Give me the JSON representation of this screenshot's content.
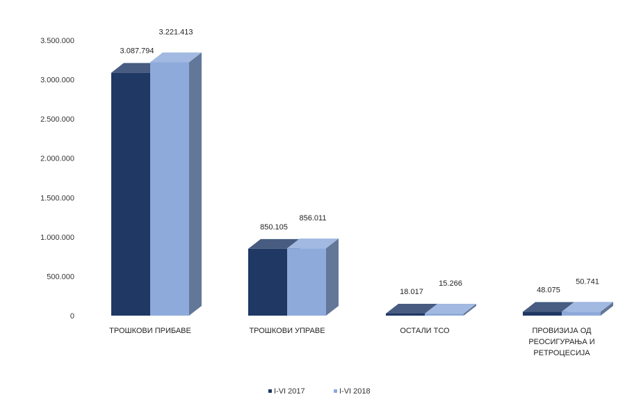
{
  "chart_data": {
    "type": "bar",
    "categories": [
      [
        "ТРОШКОВИ ПРИБАВЕ"
      ],
      [
        "ТРОШКОВИ УПРАВЕ"
      ],
      [
        "ОСТАЛИ ТСО"
      ],
      [
        "ПРОВИЗИЈА ОД",
        "РЕОСИГУРАЊА И",
        "РЕТРОЦЕСИЈА"
      ]
    ],
    "series": [
      {
        "name": "I-VI 2017",
        "values": [
          3087794,
          850105,
          18017,
          48075
        ],
        "labels": [
          "3.087.794",
          "850.105",
          "18.017",
          "48.075"
        ],
        "color": "#1f3864"
      },
      {
        "name": "I-VI 2018",
        "values": [
          3221413,
          856011,
          15266,
          50741
        ],
        "labels": [
          "3.221.413",
          "856.011",
          "15.266",
          "50.741"
        ],
        "color": "#8eaadb"
      }
    ],
    "yticks": [
      "0",
      "500.000",
      "1.000.000",
      "1.500.000",
      "2.000.000",
      "2.500.000",
      "3.000.000",
      "3.500.000"
    ],
    "ylim": [
      0,
      3500000
    ],
    "grid": false,
    "legend": "bottom-center",
    "style": "3d-column",
    "title": "",
    "xlabel": "",
    "ylabel": ""
  }
}
